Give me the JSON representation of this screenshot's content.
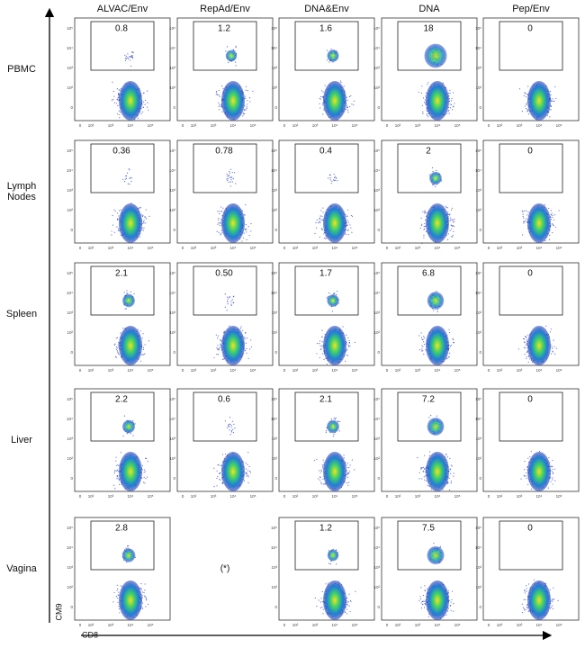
{
  "columns": [
    "ALVAC/Env",
    "RepAd/Env",
    "DNA&Env",
    "DNA",
    "Pep/Env"
  ],
  "rows": [
    {
      "label": "PBMC",
      "gates": [
        "0.8",
        "1.2",
        "1.6",
        "18",
        "0"
      ]
    },
    {
      "label": "Lymph Nodes",
      "gates": [
        "0.36",
        "0.78",
        "0.4",
        "2",
        "0"
      ]
    },
    {
      "label": "Spleen",
      "gates": [
        "2.1",
        "0.50",
        "1.7",
        "6.8",
        "0"
      ]
    },
    {
      "label": "Liver",
      "gates": [
        "2.2",
        "0.6",
        "2.1",
        "7.2",
        "0"
      ]
    },
    {
      "label": "Vagina",
      "gates": [
        "2.8",
        "(*)",
        "1.2",
        "7.5",
        "0"
      ]
    }
  ],
  "y_axis_label": "CM9",
  "x_axis_label": "CD8",
  "axis_ticks": [
    "0",
    "10²",
    "10³",
    "10⁴",
    "10⁵"
  ]
}
